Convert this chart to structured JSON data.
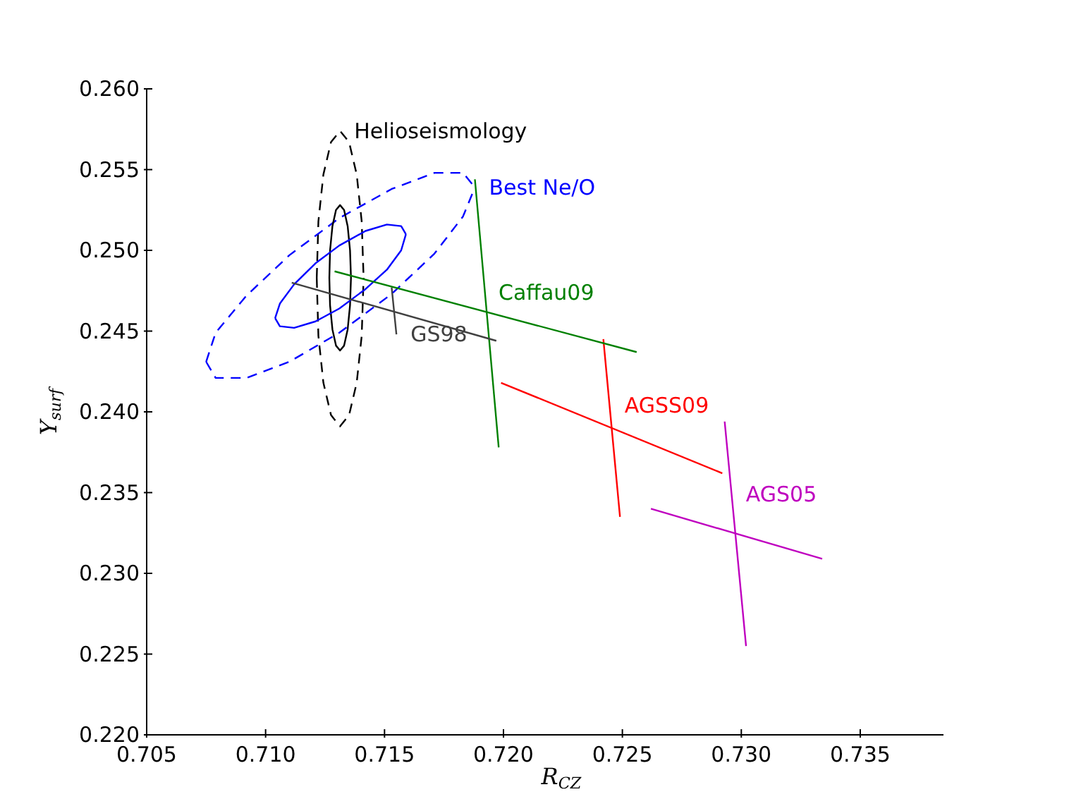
{
  "chart_data": {
    "type": "line",
    "xlabel": "R$_{CZ}$",
    "ylabel": "Y$_{surf}$",
    "marker": "none",
    "xlim": [
      0.705,
      0.7385
    ],
    "xticks": [
      {
        "value": 0.705,
        "label": "0.705"
      },
      {
        "value": 0.71,
        "label": "0.710"
      },
      {
        "value": 0.715,
        "label": "0.715"
      },
      {
        "value": 0.72,
        "label": "0.720"
      },
      {
        "value": 0.725,
        "label": "0.725"
      },
      {
        "value": 0.73,
        "label": "0.730"
      },
      {
        "value": 0.735,
        "label": "0.735"
      }
    ],
    "ylim": [
      0.22,
      0.26
    ],
    "yticks": [
      {
        "value": 0.22,
        "label": "0.220"
      },
      {
        "value": 0.225,
        "label": "0.225"
      },
      {
        "value": 0.23,
        "label": "0.230"
      },
      {
        "value": 0.235,
        "label": "0.235"
      },
      {
        "value": 0.24,
        "label": "0.240"
      },
      {
        "value": 0.245,
        "label": "0.245"
      },
      {
        "value": 0.25,
        "label": "0.250"
      },
      {
        "value": 0.255,
        "label": "0.255"
      },
      {
        "value": 0.26,
        "label": "0.260"
      }
    ],
    "annotations": [
      {
        "text": "Helioseismology",
        "x": 0.71313,
        "y": 0.2574
      },
      {
        "text": "Best Ne/O",
        "x": 0.7188,
        "y": 0.2539
      },
      {
        "text": "Caffau09",
        "x": 0.7192,
        "y": 0.2474
      },
      {
        "text": "GS98",
        "x": 0.7155,
        "y": 0.2448
      },
      {
        "text": "AGSS09",
        "x": 0.7245,
        "y": 0.2404
      },
      {
        "text": "AGS05",
        "x": 0.7296,
        "y": 0.2349
      }
    ],
    "series": [
      {
        "color": "#000000",
        "line_style": "dashed",
        "x": [
          0.71215,
          0.71222,
          0.71243,
          0.71275,
          0.71313,
          0.71351,
          0.71383,
          0.71404,
          0.71412,
          null,
          0.71215,
          0.71222,
          0.71243,
          0.71275,
          0.71313,
          0.71351,
          0.71383,
          0.71404,
          0.71412
        ],
        "values": [
          0.2483,
          0.2518,
          0.2547,
          0.2567,
          0.2574,
          0.2567,
          0.2547,
          0.2518,
          0.2483,
          null,
          0.2483,
          0.2447,
          0.2418,
          0.2398,
          0.2391,
          0.2398,
          0.2418,
          0.2447,
          0.2483
        ]
      },
      {
        "color": "#0000ff",
        "line_style": "dashed",
        "x": [
          0.7075,
          0.7079,
          0.7092,
          0.711,
          0.7131,
          0.7153,
          0.7171,
          0.7183,
          0.7188
        ],
        "values": [
          0.2431,
          0.2449,
          0.2472,
          0.2497,
          0.252,
          0.2538,
          0.2548,
          0.2548,
          0.2539
        ]
      },
      {
        "color": "#008000",
        "x": [
          0.7188,
          0.7198
        ],
        "values": [
          0.2544,
          0.2378
        ]
      },
      {
        "color": "#404040",
        "x": [
          0.7153,
          0.7155
        ],
        "values": [
          0.2477,
          0.2448
        ]
      },
      {
        "color": "#ff0000",
        "x": [
          0.7242,
          0.7249
        ],
        "values": [
          0.2445,
          0.2335
        ]
      },
      {
        "color": "#bf00bf",
        "x": [
          0.7293,
          0.7302
        ],
        "values": [
          0.2394,
          0.2255
        ]
      },
      {
        "color": "#0000ff",
        "line_style": "dashed",
        "x": [
          0.7075,
          0.7079,
          0.7092,
          0.711,
          0.7131,
          0.7153,
          0.7171,
          0.7183,
          0.7188
        ],
        "values": [
          0.2431,
          0.2421,
          0.2421,
          0.2431,
          0.2449,
          0.2473,
          0.2498,
          0.2521,
          0.2539
        ]
      },
      {
        "color": "#000000",
        "line_style": "solid",
        "x": [
          0.71268,
          0.71271,
          0.71281,
          0.71296,
          0.71313,
          0.7133,
          0.71345,
          0.71355,
          0.71359,
          null,
          0.71268,
          0.71271,
          0.71281,
          0.71296,
          0.71313,
          0.7133,
          0.71345,
          0.71355,
          0.71359
        ],
        "values": [
          0.2483,
          0.25,
          0.2515,
          0.2525,
          0.2528,
          0.2525,
          0.2515,
          0.25,
          0.2483,
          null,
          0.2483,
          0.2466,
          0.2451,
          0.2441,
          0.2438,
          0.2441,
          0.2451,
          0.2466,
          0.2483
        ]
      },
      {
        "color": "#0000ff",
        "line_style": "solid",
        "x": [
          0.7104,
          0.7106,
          0.7112,
          0.7121,
          0.7131,
          0.7142,
          0.7151,
          0.7157,
          0.7159
        ],
        "values": [
          0.2458,
          0.2467,
          0.2479,
          0.2492,
          0.2503,
          0.2512,
          0.2516,
          0.2515,
          0.251
        ]
      },
      {
        "color": "#0000ff",
        "line_style": "solid",
        "x": [
          0.7104,
          0.7106,
          0.7112,
          0.7121,
          0.7131,
          0.7142,
          0.7151,
          0.7157,
          0.7159
        ],
        "values": [
          0.2458,
          0.2453,
          0.2452,
          0.2456,
          0.2464,
          0.2476,
          0.2488,
          0.25,
          0.251
        ]
      },
      {
        "color": "#008000",
        "x": [
          0.7129,
          0.7256
        ],
        "values": [
          0.2487,
          0.2437
        ]
      },
      {
        "color": "#404040",
        "x": [
          0.7111,
          0.7197
        ],
        "values": [
          0.248,
          0.2444
        ]
      },
      {
        "color": "#ff0000",
        "x": [
          0.7199,
          0.7292
        ],
        "values": [
          0.2418,
          0.2362
        ]
      },
      {
        "color": "#bf00bf",
        "x": [
          0.7262,
          0.7334
        ],
        "values": [
          0.234,
          0.2309
        ]
      }
    ]
  }
}
